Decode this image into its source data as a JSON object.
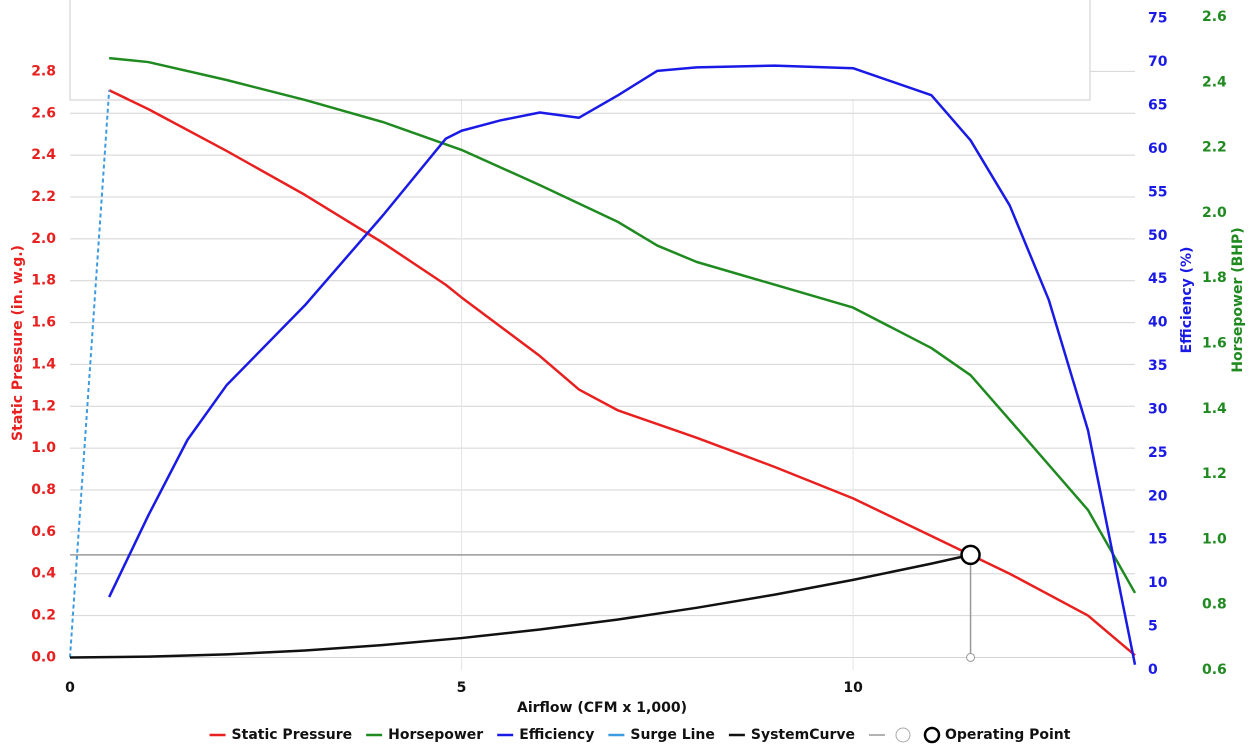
{
  "chart_data": {
    "type": "line",
    "x_label": "Airflow (CFM x 1,000)",
    "y_label": "Static Pressure (in. w.g.)",
    "y2_label": "Efficiency (%)",
    "y3_label": "Horsepower (BHP)",
    "xlim": [
      0,
      13.6
    ],
    "xticks": [
      0,
      5,
      10
    ],
    "ylim": [
      -0.06,
      3.06
    ],
    "yticks": [
      {
        "value": 0,
        "label": "0.0"
      },
      0.2,
      0.4,
      0.6,
      0.8,
      {
        "value": 1,
        "label": "1.0"
      },
      1.2,
      1.4,
      1.6,
      1.8,
      {
        "value": 2,
        "label": "2.0"
      },
      2.2,
      2.4,
      2.6,
      2.8
    ],
    "y_color": "#e8201f",
    "y2lim": [
      0,
      75.2
    ],
    "y2ticks": [
      0,
      5,
      10,
      15,
      20,
      25,
      30,
      35,
      40,
      45,
      50,
      55,
      60,
      65,
      70,
      75
    ],
    "y2_color": "#1a1ae6",
    "y3lim": [
      0.6,
      2.6
    ],
    "y3ticks": [
      0.6,
      0.8,
      {
        "value": 1,
        "label": "1.0"
      },
      1.2,
      1.4,
      1.6,
      1.8,
      {
        "value": 2,
        "label": "2.0"
      },
      2.2,
      2.4,
      2.6
    ],
    "y3_color": "#1f8a1f",
    "grid": true,
    "series": [
      {
        "name": "Static Pressure",
        "color": "#e8201f",
        "axis": "y",
        "x": [
          0.5,
          1,
          2,
          3,
          4,
          4.8,
          5,
          6,
          6.5,
          7,
          8,
          9,
          10,
          11,
          11.5,
          12,
          13,
          13.6
        ],
        "values": [
          2.71,
          2.62,
          2.42,
          2.21,
          1.98,
          1.78,
          1.72,
          1.44,
          1.28,
          1.18,
          1.05,
          0.91,
          0.76,
          0.58,
          0.49,
          0.4,
          0.2,
          0.01
        ]
      },
      {
        "name": "Horsepower",
        "color": "#1f8a1f",
        "axis": "y3",
        "x": [
          0.5,
          1,
          2,
          3,
          4,
          5,
          6,
          7,
          7.5,
          8,
          9,
          10,
          11,
          11.5,
          12,
          13,
          13.6
        ],
        "values": [
          2.474,
          2.462,
          2.407,
          2.346,
          2.278,
          2.193,
          2.085,
          1.972,
          1.9,
          1.85,
          1.78,
          1.71,
          1.586,
          1.503,
          1.366,
          1.09,
          0.836
        ]
      },
      {
        "name": "Efficiency",
        "color": "#1a1ae6",
        "axis": "y2",
        "x": [
          0.5,
          1,
          1.5,
          2,
          3,
          4,
          4.8,
          5,
          5.5,
          6,
          6.5,
          7,
          7.5,
          8,
          9,
          10,
          11,
          11.5,
          12,
          12.5,
          13,
          13.6
        ],
        "values": [
          8.4,
          17.8,
          26.5,
          32.8,
          42,
          52.4,
          61.2,
          62.1,
          63.3,
          64.2,
          63.6,
          66.2,
          69,
          69.4,
          69.6,
          69.3,
          66.2,
          61,
          53.5,
          42.6,
          27.6,
          0.6
        ]
      },
      {
        "name": "Surge Line",
        "color": "#3d9be0",
        "axis": "y",
        "dashed": true,
        "x": [
          0,
          0.5
        ],
        "values": [
          0,
          2.71
        ]
      },
      {
        "name": "SystemCurve",
        "color": "#111111",
        "axis": "y",
        "x": [
          0,
          1,
          2,
          3,
          4,
          5,
          6,
          7,
          8,
          9,
          10,
          11,
          11.5
        ],
        "values": [
          0,
          0.0037,
          0.0148,
          0.0333,
          0.0593,
          0.0926,
          0.1334,
          0.1815,
          0.2371,
          0.3001,
          0.3705,
          0.4483,
          0.49
        ]
      }
    ],
    "operating_point": {
      "name": "Operating Point",
      "x": 11.5,
      "y": 0.49,
      "color": "#000000",
      "guide_color": "#999999"
    }
  }
}
